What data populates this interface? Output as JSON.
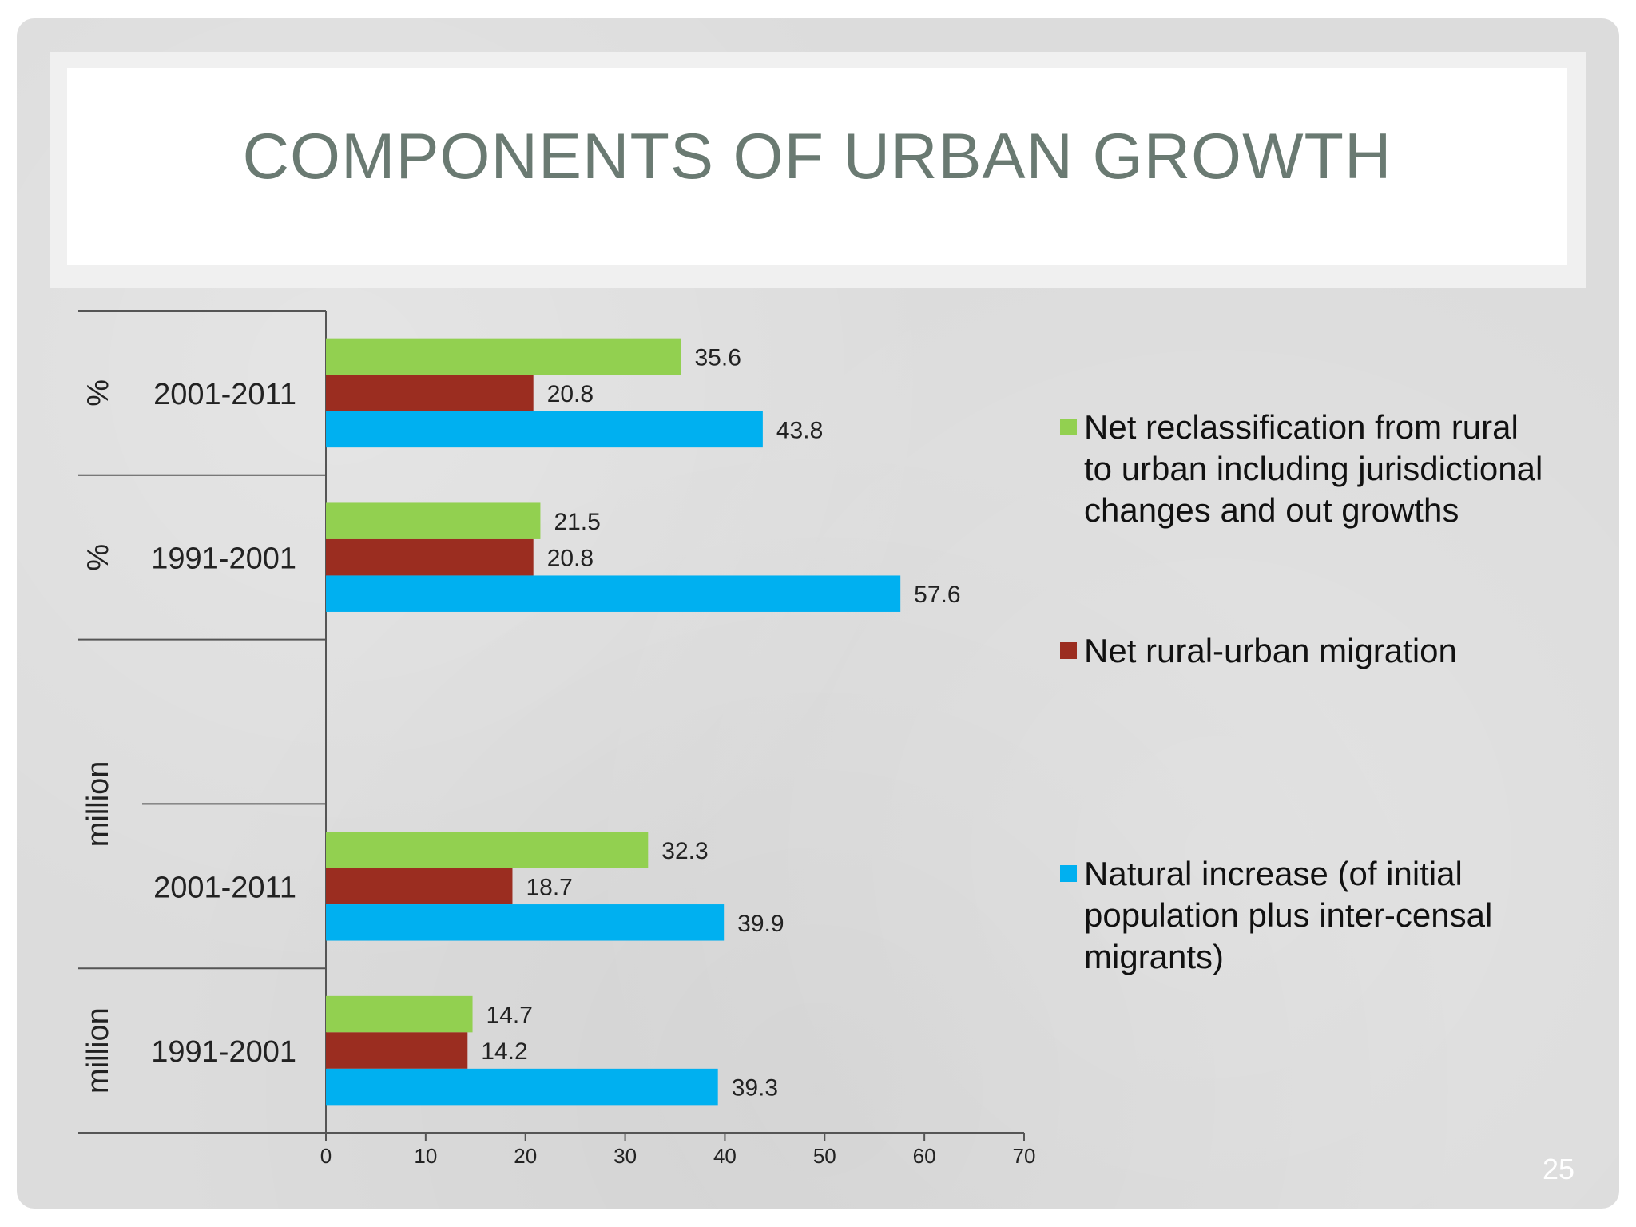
{
  "slide": {
    "title": "COMPONENTS OF URBAN GROWTH",
    "page_number": "25"
  },
  "colors": {
    "reclassification": "#92d050",
    "migration": "#9b2d20",
    "natural": "#00b0f0",
    "title_text": "#6a7a72"
  },
  "chart_data": {
    "type": "bar",
    "orientation": "horizontal",
    "categories": [
      {
        "group": "%",
        "period": "2001-2011"
      },
      {
        "group": "%",
        "period": "1991-2001"
      },
      {
        "group": "million",
        "period": ""
      },
      {
        "group": "million",
        "period": "2001-2011"
      },
      {
        "group": "million",
        "period": "1991-2001"
      }
    ],
    "group_labels": [
      "%",
      "%",
      "million",
      "million"
    ],
    "series": [
      {
        "name": "Net reclassification from rural to urban including jurisdictional changes and out growths",
        "values": [
          35.6,
          21.5,
          null,
          32.3,
          14.7
        ],
        "labels": [
          "35.6",
          "21.5",
          "",
          "32.3",
          "14.7"
        ]
      },
      {
        "name": "Net rural-urban migration",
        "values": [
          20.8,
          20.8,
          null,
          18.7,
          14.2
        ],
        "labels": [
          "20.8",
          "20.8",
          "",
          "18.7",
          "14.2"
        ]
      },
      {
        "name": "Natural increase (of initial population plus inter-censal migrants)",
        "values": [
          43.8,
          57.6,
          null,
          39.9,
          39.3
        ],
        "labels": [
          "43.8",
          "57.6",
          "",
          "39.9",
          "39.3"
        ]
      }
    ],
    "xlim": [
      0,
      70
    ],
    "xticks": [
      "0",
      "10",
      "20",
      "30",
      "40",
      "50",
      "60",
      "70"
    ],
    "legend_position": "right",
    "grid": false
  }
}
